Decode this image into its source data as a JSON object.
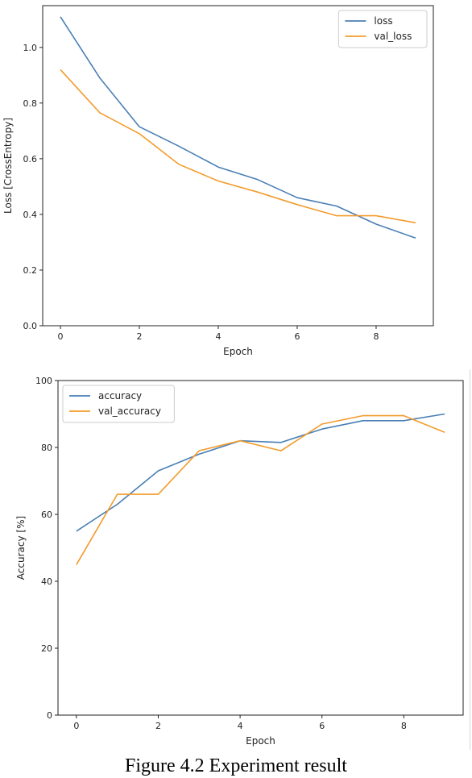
{
  "chart_data": [
    {
      "type": "line",
      "xlabel": "Epoch",
      "ylabel": "Loss [CrossEntropy]",
      "xlim": [
        -0.45,
        9.45
      ],
      "ylim": [
        0.0,
        1.15
      ],
      "xticks": [
        0,
        2,
        4,
        6,
        8
      ],
      "yticks": [
        0.0,
        0.2,
        0.4,
        0.6,
        0.8,
        1.0
      ],
      "xtick_labels": [
        "0",
        "2",
        "4",
        "6",
        "8"
      ],
      "ytick_labels": [
        "0.0",
        "0.2",
        "0.4",
        "0.6",
        "0.8",
        "1.0"
      ],
      "grid": false,
      "legend_position": "top-right",
      "series": [
        {
          "name": "loss",
          "color": "#4a7fb5",
          "x": [
            0,
            1,
            2,
            3,
            4,
            5,
            6,
            7,
            8,
            9
          ],
          "y": [
            1.11,
            0.89,
            0.715,
            0.645,
            0.57,
            0.525,
            0.46,
            0.43,
            0.365,
            0.315
          ]
        },
        {
          "name": "val_loss",
          "color": "#f39b2b",
          "x": [
            0,
            1,
            2,
            3,
            4,
            5,
            6,
            7,
            8,
            9
          ],
          "y": [
            0.92,
            0.765,
            0.69,
            0.58,
            0.52,
            0.48,
            0.435,
            0.395,
            0.395,
            0.37
          ]
        }
      ]
    },
    {
      "type": "line",
      "xlabel": "Epoch",
      "ylabel": "Accuracy [%]",
      "xlim": [
        -0.45,
        9.45
      ],
      "ylim": [
        0,
        100
      ],
      "xticks": [
        0,
        2,
        4,
        6,
        8
      ],
      "yticks": [
        0,
        20,
        40,
        60,
        80,
        100
      ],
      "xtick_labels": [
        "0",
        "2",
        "4",
        "6",
        "8"
      ],
      "ytick_labels": [
        "0",
        "20",
        "40",
        "60",
        "80",
        "100"
      ],
      "grid": false,
      "legend_position": "top-left",
      "series": [
        {
          "name": "accuracy",
          "color": "#4a7fb5",
          "x": [
            0,
            1,
            2,
            3,
            4,
            5,
            6,
            7,
            8,
            9
          ],
          "y": [
            55,
            63,
            73,
            78,
            82,
            81.5,
            85.5,
            88,
            88,
            90
          ]
        },
        {
          "name": "val_accuracy",
          "color": "#f39b2b",
          "x": [
            0,
            1,
            2,
            3,
            4,
            5,
            6,
            7,
            8,
            9
          ],
          "y": [
            45,
            66,
            66,
            79,
            82,
            79,
            87,
            89.5,
            89.5,
            84.5
          ]
        }
      ]
    }
  ],
  "caption": "Figure 4.2 Experiment result"
}
